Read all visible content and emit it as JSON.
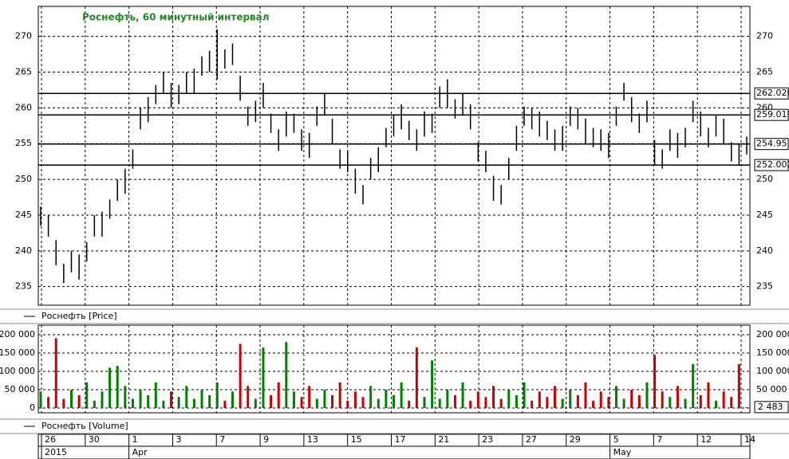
{
  "chart_data": {
    "type": "ohlc",
    "title": "Роснефть, 60 минутный интервал",
    "price": {
      "legend": "Роснефть [Price]",
      "color": "#000000",
      "ylim": [
        232.4,
        274.2
      ],
      "yticks": [
        235,
        240,
        245,
        250,
        255,
        260,
        265,
        270
      ],
      "levels": [
        262.026,
        259.019,
        254.95,
        252.002
      ],
      "highs": [
        246.2,
        245.0,
        241.5,
        238.2,
        240.0,
        239.5,
        241.2,
        245.0,
        245.5,
        247.2,
        250.0,
        251.5,
        254.2,
        260.0,
        261.5,
        263.2,
        265.0,
        263.5,
        263.2,
        265.0,
        265.5,
        267.2,
        268.0,
        271.0,
        268.2,
        269.0,
        264.5,
        260.2,
        261.0,
        263.5,
        259.2,
        257.0,
        259.5,
        259.2,
        257.0,
        256.5,
        260.2,
        262.0,
        258.5,
        254.2,
        254.0,
        251.5,
        249.2,
        253.0,
        254.5,
        257.2,
        259.0,
        260.5,
        258.2,
        257.0,
        259.5,
        259.2,
        263.0,
        264.0,
        261.2,
        262.0,
        260.5,
        255.2,
        254.0,
        250.5,
        249.2,
        253.0,
        257.5,
        260.2,
        260.0,
        259.5,
        258.2,
        257.0,
        257.5,
        260.2,
        260.0,
        258.5,
        257.2,
        257.0,
        256.5,
        260.2,
        263.5,
        261.5,
        259.2,
        261.0,
        255.5,
        254.2,
        257.0,
        256.5,
        257.2,
        261.0,
        259.5,
        257.2,
        259.0,
        258.5,
        255.2,
        255.0,
        256.0
      ],
      "lows": [
        243.5,
        242.0,
        238.0,
        235.5,
        237.0,
        236.0,
        238.5,
        242.0,
        242.0,
        244.5,
        247.0,
        248.0,
        251.5,
        257.0,
        258.0,
        260.5,
        262.0,
        260.0,
        260.5,
        262.0,
        262.0,
        264.5,
        265.0,
        264.0,
        265.5,
        266.0,
        261.0,
        257.5,
        258.0,
        260.0,
        256.5,
        254.0,
        256.0,
        256.5,
        254.0,
        253.0,
        257.5,
        259.0,
        255.0,
        251.5,
        251.0,
        248.0,
        246.5,
        250.0,
        251.0,
        254.5,
        256.0,
        257.0,
        255.5,
        254.0,
        256.0,
        256.5,
        260.0,
        260.0,
        258.5,
        259.0,
        257.0,
        252.5,
        251.0,
        247.0,
        246.5,
        250.0,
        254.0,
        257.5,
        257.0,
        256.0,
        255.5,
        254.0,
        254.0,
        257.5,
        257.0,
        255.0,
        254.5,
        254.0,
        253.0,
        257.5,
        261.0,
        258.0,
        256.5,
        258.0,
        252.0,
        251.5,
        254.0,
        253.0,
        254.5,
        258.0,
        256.0,
        254.5,
        256.0,
        255.0,
        252.5,
        252.0,
        253.5
      ]
    },
    "volume": {
      "legend": "Роснефть [Volume]",
      "up_color": "#008000",
      "down_color": "#cc0000",
      "ylim": [
        -13000,
        226000
      ],
      "yticks": [
        {
          "value": 0,
          "label": "0"
        },
        {
          "value": 50000,
          "label": "50 000"
        },
        {
          "value": 100000,
          "label": "100 000"
        },
        {
          "value": 150000,
          "label": "150 000"
        },
        {
          "value": 200000,
          "label": "200 000"
        }
      ],
      "values": [
        45000,
        30000,
        190000,
        25000,
        50000,
        35000,
        70000,
        20000,
        45000,
        110000,
        115000,
        60000,
        25000,
        50000,
        35000,
        70000,
        20000,
        45000,
        30000,
        60000,
        25000,
        50000,
        35000,
        70000,
        20000,
        45000,
        175000,
        60000,
        25000,
        165000,
        35000,
        70000,
        180000,
        45000,
        30000,
        60000,
        25000,
        50000,
        35000,
        70000,
        20000,
        45000,
        30000,
        60000,
        25000,
        50000,
        35000,
        70000,
        20000,
        165000,
        30000,
        130000,
        25000,
        50000,
        35000,
        70000,
        20000,
        45000,
        30000,
        60000,
        25000,
        50000,
        35000,
        70000,
        20000,
        45000,
        30000,
        60000,
        25000,
        50000,
        35000,
        70000,
        20000,
        45000,
        30000,
        60000,
        25000,
        50000,
        35000,
        70000,
        145000,
        45000,
        30000,
        60000,
        25000,
        120000,
        35000,
        70000,
        20000,
        45000,
        30000,
        120000,
        2483
      ],
      "last_label": "2 483"
    },
    "x_axis": {
      "days": [
        "26",
        "30",
        "1",
        "3",
        "7",
        "9",
        "13",
        "15",
        "17",
        "21",
        "23",
        "27",
        "29",
        "5",
        "7",
        "12",
        "14"
      ],
      "months": [
        "2015",
        "Apr",
        "May"
      ]
    }
  }
}
